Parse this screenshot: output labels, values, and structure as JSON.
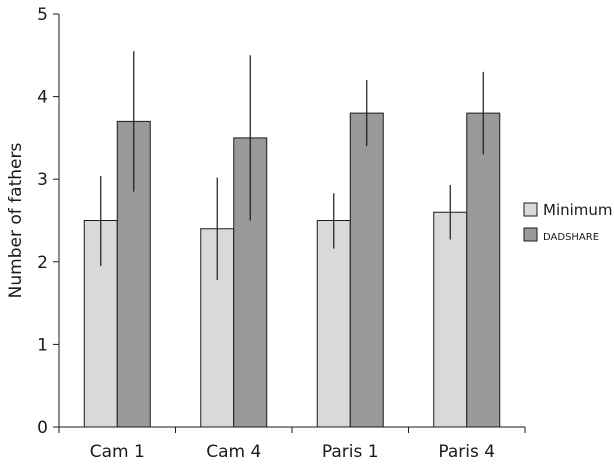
{
  "chart_data": {
    "type": "bar",
    "categories": [
      "Cam 1",
      "Cam 4",
      "Paris 1",
      "Paris 4"
    ],
    "series": [
      {
        "name": "Minimum",
        "color": "#d9d9d9",
        "values": [
          2.5,
          2.4,
          2.5,
          2.6
        ],
        "error_low": [
          1.95,
          1.78,
          2.16,
          2.27
        ],
        "error_high": [
          3.04,
          3.02,
          2.83,
          2.93
        ]
      },
      {
        "name": "DADSHARE",
        "color": "#999999",
        "values": [
          3.7,
          3.5,
          3.8,
          3.8
        ],
        "error_low": [
          2.85,
          2.5,
          3.4,
          3.3
        ],
        "error_high": [
          4.55,
          4.5,
          4.2,
          4.3
        ]
      }
    ],
    "title": "",
    "xlabel": "",
    "ylabel": "Number of fathers",
    "ylim": [
      0,
      5
    ],
    "yticks": [
      "0",
      "1",
      "2",
      "3",
      "4",
      "5"
    ],
    "grid": false,
    "legend_position": "right"
  }
}
